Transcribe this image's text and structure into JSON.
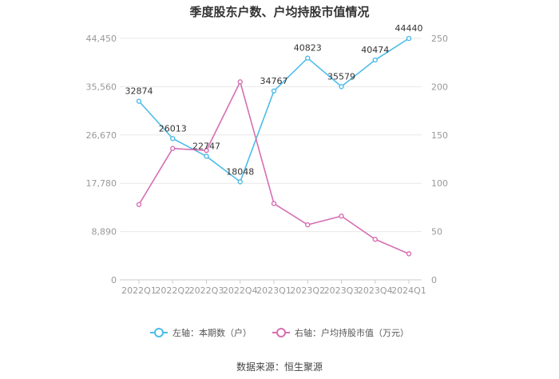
{
  "chart_data": {
    "type": "line",
    "title": "季度股东户数、户均持股市值情况",
    "categories": [
      "2022Q1",
      "2022Q2",
      "2022Q3",
      "2022Q4",
      "2023Q1",
      "2023Q2",
      "2023Q3",
      "2023Q4",
      "2024Q1"
    ],
    "left_axis": {
      "ticks": [
        "0",
        "8,890",
        "17,780",
        "26,670",
        "35,560",
        "44,450"
      ],
      "ylim": [
        0,
        44450
      ]
    },
    "right_axis": {
      "ticks": [
        "0",
        "50",
        "100",
        "150",
        "200",
        "250"
      ],
      "ylim": [
        0,
        250
      ]
    },
    "series": [
      {
        "name": "左轴：本期数（户）",
        "axis": "left",
        "color": "#4dbce9",
        "values": [
          32874,
          26013,
          22747,
          18048,
          34767,
          40823,
          35579,
          40474,
          44440
        ],
        "labels": [
          "32874",
          "26013",
          "22747",
          "18048",
          "34767",
          "40823",
          "35579",
          "40474",
          "44440"
        ]
      },
      {
        "name": "右轴：户均持股市值（万元）",
        "axis": "right",
        "color": "#d66fb3",
        "values": [
          78,
          136,
          134,
          205,
          79,
          57,
          66,
          42,
          27
        ]
      }
    ],
    "grid": true,
    "legend_position": "bottom"
  },
  "source": "数据来源：恒生聚源"
}
